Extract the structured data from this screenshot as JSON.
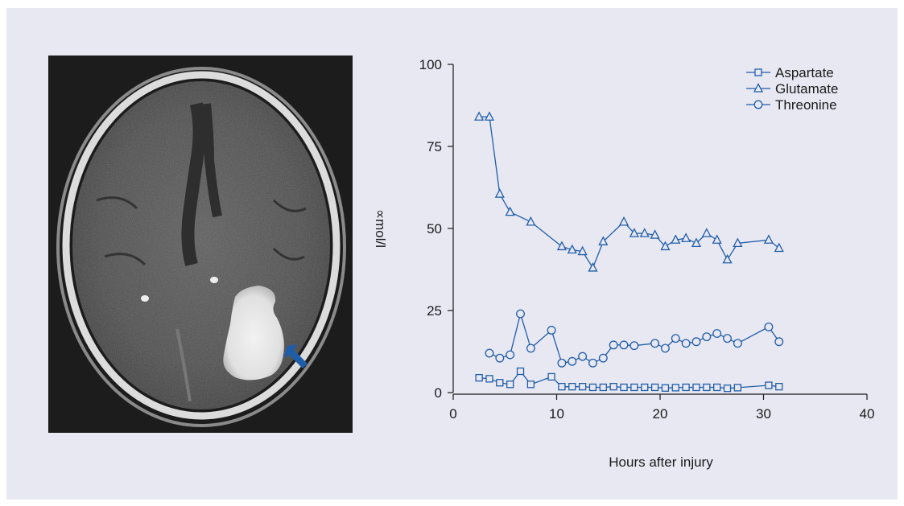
{
  "image": {
    "description_icon": "ct-brain-scan",
    "arrow_color": "#1f5da8"
  },
  "chart_data": {
    "type": "line",
    "title": "",
    "xlabel": "Hours after injury",
    "ylabel": "∝mol/l",
    "xlim": [
      0,
      40
    ],
    "ylim": [
      0,
      100
    ],
    "x_ticks": [
      0,
      10,
      20,
      30,
      40
    ],
    "y_ticks": [
      0,
      25,
      50,
      75,
      100
    ],
    "grid": false,
    "legend_position": "top-right",
    "line_color": "#1f5da8",
    "series": [
      {
        "name": "Aspartate",
        "marker": "square",
        "points": [
          [
            2.5,
            4.5
          ],
          [
            3.5,
            4.2
          ],
          [
            4.5,
            3.0
          ],
          [
            5.5,
            2.5
          ],
          [
            6.5,
            6.5
          ],
          [
            7.5,
            2.5
          ],
          [
            9.5,
            4.8
          ],
          [
            10.5,
            1.8
          ],
          [
            11.5,
            1.8
          ],
          [
            12.5,
            1.8
          ],
          [
            13.5,
            1.6
          ],
          [
            14.5,
            1.6
          ],
          [
            15.5,
            1.8
          ],
          [
            16.5,
            1.6
          ],
          [
            17.5,
            1.6
          ],
          [
            18.5,
            1.6
          ],
          [
            19.5,
            1.6
          ],
          [
            20.5,
            1.4
          ],
          [
            21.5,
            1.5
          ],
          [
            22.5,
            1.6
          ],
          [
            23.5,
            1.6
          ],
          [
            24.5,
            1.6
          ],
          [
            25.5,
            1.6
          ],
          [
            26.5,
            1.3
          ],
          [
            27.5,
            1.5
          ],
          [
            30.5,
            2.2
          ],
          [
            31.5,
            1.8
          ]
        ]
      },
      {
        "name": "Glutamate",
        "marker": "triangle",
        "points": [
          [
            2.5,
            84
          ],
          [
            3.5,
            84
          ],
          [
            4.5,
            60.5
          ],
          [
            5.5,
            55
          ],
          [
            7.5,
            52
          ],
          [
            10.5,
            44.5
          ],
          [
            11.5,
            43.5
          ],
          [
            12.5,
            43
          ],
          [
            13.5,
            38
          ],
          [
            14.5,
            46
          ],
          [
            16.5,
            52
          ],
          [
            17.5,
            48.5
          ],
          [
            18.5,
            48.5
          ],
          [
            19.5,
            48
          ],
          [
            20.5,
            44.5
          ],
          [
            21.5,
            46.5
          ],
          [
            22.5,
            47
          ],
          [
            23.5,
            45.5
          ],
          [
            24.5,
            48.5
          ],
          [
            25.5,
            46.5
          ],
          [
            26.5,
            40.5
          ],
          [
            27.5,
            45.5
          ],
          [
            30.5,
            46.5
          ],
          [
            31.5,
            44
          ]
        ]
      },
      {
        "name": "Threonine",
        "marker": "circle",
        "points": [
          [
            3.5,
            12
          ],
          [
            4.5,
            10.5
          ],
          [
            5.5,
            11.5
          ],
          [
            6.5,
            24
          ],
          [
            7.5,
            13.5
          ],
          [
            9.5,
            19
          ],
          [
            10.5,
            9
          ],
          [
            11.5,
            9.5
          ],
          [
            12.5,
            11
          ],
          [
            13.5,
            9
          ],
          [
            14.5,
            10.5
          ],
          [
            15.5,
            14.5
          ],
          [
            16.5,
            14.5
          ],
          [
            17.5,
            14.3
          ],
          [
            19.5,
            15
          ],
          [
            20.5,
            13.5
          ],
          [
            21.5,
            16.5
          ],
          [
            22.5,
            15
          ],
          [
            23.5,
            15.5
          ],
          [
            24.5,
            17
          ],
          [
            25.5,
            18
          ],
          [
            26.5,
            16.5
          ],
          [
            27.5,
            15
          ],
          [
            30.5,
            20
          ],
          [
            31.5,
            15.5
          ]
        ]
      }
    ]
  }
}
